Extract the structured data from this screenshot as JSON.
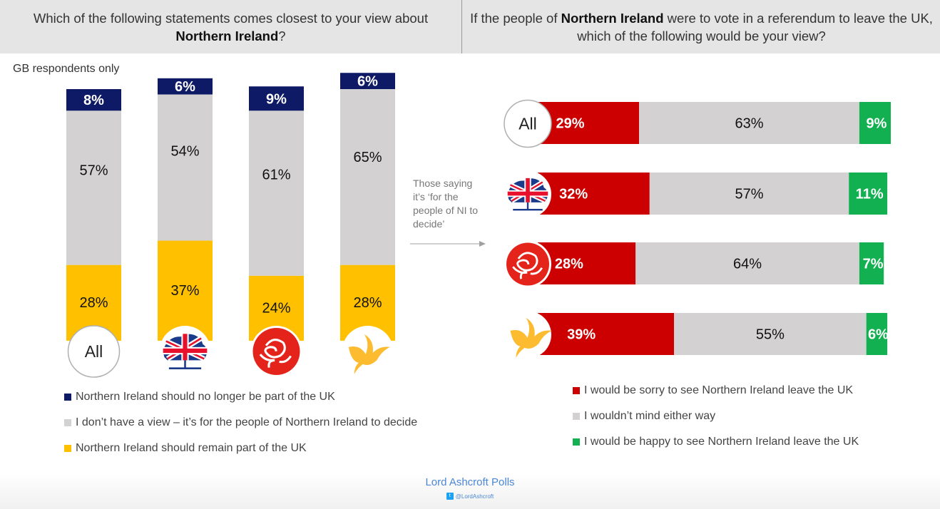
{
  "header": {
    "left_question_pre": "Which of the following statements comes closest to your view about",
    "left_question_bold": "Northern Ireland",
    "left_question_post": "?",
    "right_question_pre": "If the people of",
    "right_question_bold": "Northern Ireland",
    "right_question_post": "were to vote in a referendum to leave the UK, which of the following would be your view?"
  },
  "subnote": "GB respondents only",
  "side_note": "Those saying it’s ‘for the people of NI to decide’",
  "colors": {
    "navy": "#0f1a66",
    "grey": "#d3d1d2",
    "yellow": "#ffc000",
    "red": "#cc0000",
    "green": "#12b050"
  },
  "chart_data": [
    {
      "type": "bar",
      "orientation": "vertical-stacked",
      "title": "Which of the following statements comes closest to your view about Northern Ireland?",
      "categories": [
        "All",
        "Conservative",
        "Labour",
        "Liberal Democrat"
      ],
      "category_icons": [
        "all-badge",
        "conservative-tree-icon",
        "labour-rose-icon",
        "libdem-bird-icon"
      ],
      "series": [
        {
          "name": "Northern Ireland should no longer be part of the UK",
          "color": "#0f1a66",
          "values": [
            8,
            6,
            9,
            6
          ]
        },
        {
          "name": "I don’t have a view – it’s for the people of Northern Ireland to decide",
          "color": "#d3d1d2",
          "values": [
            57,
            54,
            61,
            65
          ]
        },
        {
          "name": "Northern Ireland should remain part of the UK",
          "color": "#ffc000",
          "values": [
            28,
            37,
            24,
            28
          ]
        }
      ],
      "unit": "%",
      "legend": "bottom"
    },
    {
      "type": "bar",
      "orientation": "horizontal-stacked",
      "title": "If the people of Northern Ireland were to vote in a referendum to leave the UK, which of the following would be your view?",
      "categories": [
        "All",
        "Conservative",
        "Labour",
        "Liberal Democrat"
      ],
      "category_icons": [
        "all-badge",
        "conservative-tree-icon",
        "labour-rose-icon",
        "libdem-bird-icon"
      ],
      "series": [
        {
          "name": "I would be sorry to see Northern Ireland leave the UK",
          "color": "#cc0000",
          "values": [
            29,
            32,
            28,
            39
          ]
        },
        {
          "name": "I wouldn’t mind either way",
          "color": "#d3d1d2",
          "values": [
            63,
            57,
            64,
            55
          ]
        },
        {
          "name": "I would be happy to see Northern Ireland leave the UK",
          "color": "#12b050",
          "values": [
            9,
            11,
            7,
            6
          ]
        }
      ],
      "unit": "%",
      "legend": "bottom"
    }
  ],
  "all_label": "All",
  "legend_left": [
    {
      "label": "Northern Ireland should no longer be part of the UK",
      "color": "#0f1a66"
    },
    {
      "label": "I don’t have a view – it’s for the people of Northern Ireland to decide",
      "color": "#d3d1d2"
    },
    {
      "label": "Northern Ireland should remain part of the UK",
      "color": "#ffc000"
    }
  ],
  "legend_right": [
    {
      "label": "I would be sorry to see Northern Ireland leave the UK",
      "color": "#cc0000"
    },
    {
      "label": "I wouldn’t mind either way",
      "color": "#d3d1d2"
    },
    {
      "label": "I would be happy to see Northern Ireland leave the UK",
      "color": "#12b050"
    }
  ],
  "footer": {
    "brand": "Lord Ashcroft Polls",
    "handle": "@LordAshcroft",
    "twitter_icon": "twitter-icon"
  }
}
